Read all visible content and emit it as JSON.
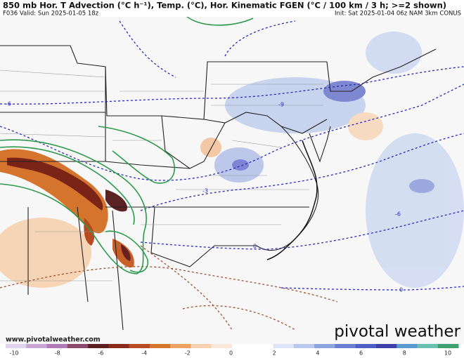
{
  "header": {
    "title": "850 mb Hor. T Advection (°C h⁻¹), Temp. (°C), Hor. Kinematic FGEN (°C / 100 km / 3 h; >=2 shown)",
    "valid": "F036 Valid: Sun 2025-01-05 18z",
    "init": "Init: Sat 2025-01-04 06z NAM 3km CONUS"
  },
  "map": {
    "contour_labels": [
      "-6",
      "-9",
      "-3",
      "-6",
      "0",
      "0"
    ]
  },
  "footer": {
    "url": "www.pivotalweather.com",
    "logo": "pivotal weather"
  },
  "colorbar": {
    "ticks": [
      -10,
      -8,
      -6,
      -4,
      -2,
      0,
      2,
      4,
      6,
      8,
      10
    ]
  }
}
